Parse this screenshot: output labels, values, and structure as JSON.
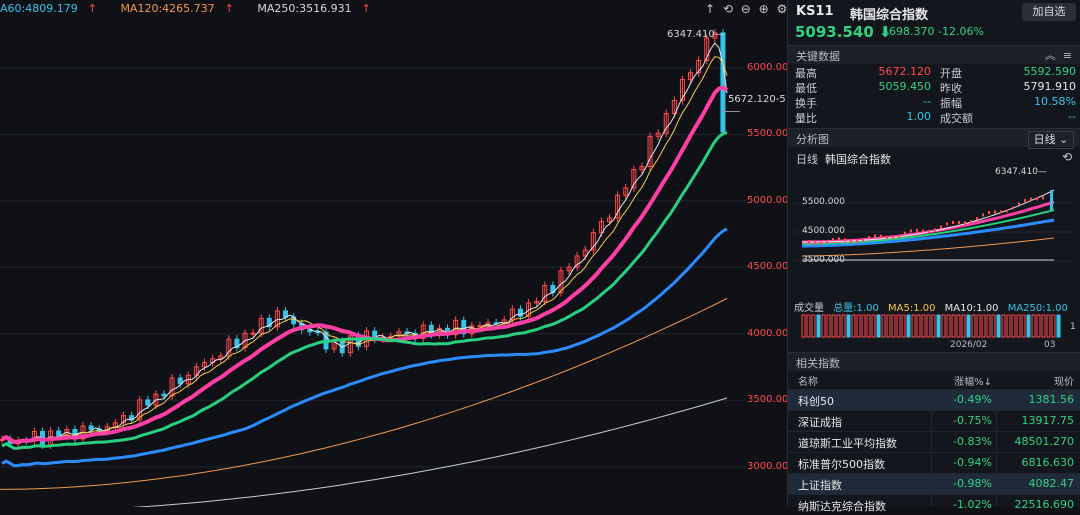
{
  "ma_legend": {
    "ma60": "A60:4809.179",
    "ma120": "MA120:4265.737",
    "ma250": "MA250:3516.931",
    "ma60_color": "#35c3e8",
    "ma120_color": "#f2994a",
    "ma250_color": "#d6d8dd"
  },
  "chart": {
    "high_label": "6347.410",
    "cross_label": "5672.120-5",
    "y_ticks": [
      {
        "value": 6000,
        "label": "6000.000"
      },
      {
        "value": 5500,
        "label": "5500.000"
      },
      {
        "value": 5000,
        "label": "5000.000"
      },
      {
        "value": 4500,
        "label": "4500.000"
      },
      {
        "value": 4000,
        "label": "4000.000"
      },
      {
        "value": 3500,
        "label": "3500.000"
      },
      {
        "value": 3000,
        "label": "3000.000"
      }
    ],
    "ylim": [
      2750,
      6450
    ]
  },
  "toolbar": {
    "up_icon": "↑",
    "back_icon": "⟲",
    "minus_icon": "−",
    "plus_icon": "+"
  },
  "header": {
    "code": "KS11",
    "name": "韩国综合指数",
    "add_button": "加自选",
    "price": "5093.540",
    "price_arrow": "⬇",
    "change": "-698.370",
    "change_pct": "-12.06%"
  },
  "key_data": {
    "title": "关键数据",
    "rows": [
      {
        "l1": "最高",
        "v1": "5672.120",
        "l2": "开盘",
        "v2": "5592.590"
      },
      {
        "l1": "最低",
        "v1": "5059.450",
        "l2": "昨收",
        "v2": "5791.910"
      },
      {
        "l1": "换手",
        "v1": "--",
        "l2": "振幅",
        "v2": "10.58%"
      },
      {
        "l1": "量比",
        "v1": "1.00",
        "l2": "成交额",
        "v2": "--"
      }
    ]
  },
  "analysis": {
    "title": "分析图",
    "period": "日线",
    "mini_title_a": "日线",
    "mini_title_b": "韩国综合指数",
    "mini_high": "6347.410",
    "mini_y": [
      "5500.000",
      "4500.000",
      "3500.000"
    ]
  },
  "volume": {
    "label": "成交量",
    "total": "总量:1.00",
    "ma5": "MA5:1.00",
    "ma10": "MA10:1.00",
    "ma250": "MA250:1.00",
    "x_labels": [
      "2026/02",
      "03"
    ]
  },
  "related": {
    "title": "相关指数",
    "col_name": "名称",
    "col_pct": "涨幅%↓",
    "col_price": "现价",
    "rows": [
      {
        "name": "科创50",
        "pct": "-0.49%",
        "price": "1381.56",
        "hl": true
      },
      {
        "name": "深证成指",
        "pct": "-0.75%",
        "price": "13917.75",
        "hl": false
      },
      {
        "name": "道琼斯工业平均指数",
        "pct": "-0.83%",
        "price": "48501.270",
        "hl": false
      },
      {
        "name": "标准普尔500指数",
        "pct": "-0.94%",
        "price": "6816.630",
        "hl": false
      },
      {
        "name": "上证指数",
        "pct": "-0.98%",
        "price": "4082.47",
        "hl": true
      },
      {
        "name": "纳斯达克综合指数",
        "pct": "-1.02%",
        "price": "22516.690",
        "hl": false
      }
    ]
  }
}
